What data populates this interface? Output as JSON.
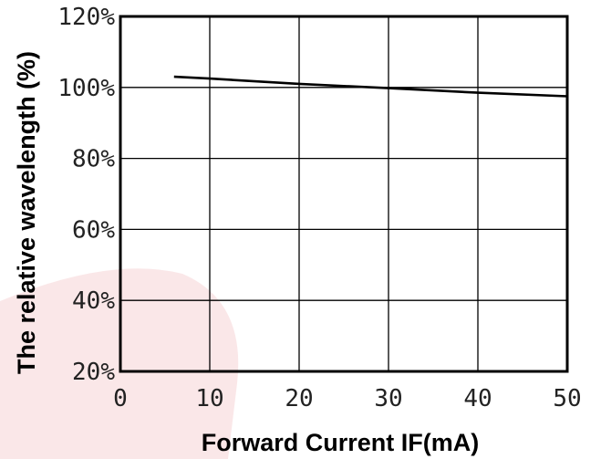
{
  "chart_data": {
    "type": "line",
    "xlabel": "Forward Current IF(mA)",
    "ylabel": "The relative wavelength (%)",
    "xlim": [
      0,
      50
    ],
    "ylim": [
      20,
      120
    ],
    "x_ticks": [
      0,
      10,
      20,
      30,
      40,
      50
    ],
    "y_ticks": [
      20,
      40,
      60,
      80,
      100,
      120
    ],
    "x_tick_labels": [
      "0",
      "10",
      "20",
      "30",
      "40",
      "50"
    ],
    "y_tick_labels": [
      "20%",
      "40%",
      "60%",
      "80%",
      "100%",
      "120%"
    ],
    "grid": true,
    "series": [
      {
        "x": [
          6,
          10,
          20,
          30,
          40,
          50
        ],
        "y": [
          103,
          102.5,
          101,
          99.8,
          98.5,
          97.5
        ]
      }
    ]
  },
  "colors": {
    "line": "#000000",
    "grid": "#000000",
    "watermark": "#f3c9cd"
  }
}
